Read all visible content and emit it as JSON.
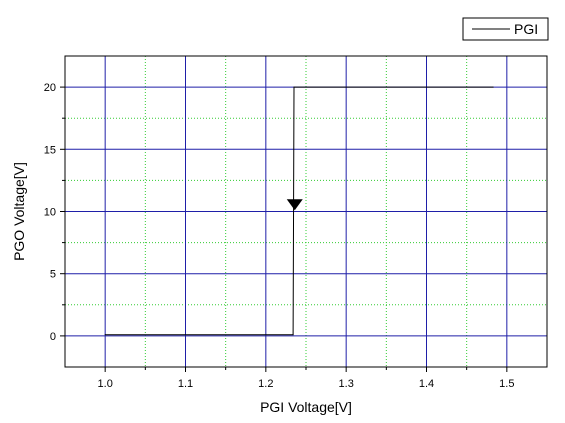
{
  "chart_data": {
    "type": "line",
    "xlabel": "PGI Voltage[V]",
    "ylabel": "PGO Voltage[V]",
    "xlim": [
      0.95,
      1.55
    ],
    "ylim": [
      -2.5,
      22.5
    ],
    "x_major_ticks": [
      1.0,
      1.1,
      1.2,
      1.3,
      1.4,
      1.5
    ],
    "x_tick_labels": [
      "1.0",
      "1.1",
      "1.2",
      "1.3",
      "1.4",
      "1.5"
    ],
    "x_minor_ticks": [
      1.05,
      1.15,
      1.25,
      1.35,
      1.45
    ],
    "y_major_ticks": [
      0,
      5,
      10,
      15,
      20
    ],
    "y_tick_labels": [
      "0",
      "5",
      "10",
      "15",
      "20"
    ],
    "y_minor_ticks": [
      2.5,
      7.5,
      12.5,
      17.5
    ],
    "grid": true,
    "grid_major_color": "#1f1fa8",
    "grid_minor_color": "#33cc33",
    "legend_position": "top-right, outside plot",
    "series": [
      {
        "name": "PGI",
        "color": "#000000",
        "points": [
          {
            "x": 1.0,
            "y": 0.1
          },
          {
            "x": 1.234,
            "y": 0.1
          },
          {
            "x": 1.235,
            "y": 20.0
          },
          {
            "x": 1.483,
            "y": 20.0
          }
        ],
        "annotation": {
          "type": "arrow-down",
          "x": 1.236,
          "y": 10.5
        }
      }
    ]
  }
}
